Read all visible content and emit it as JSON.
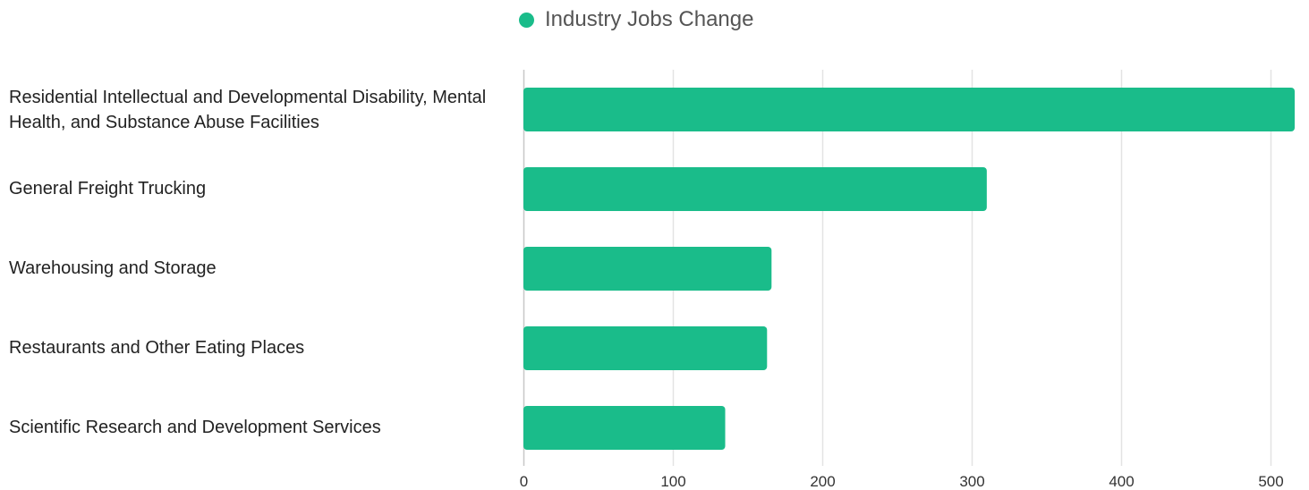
{
  "chart_data": {
    "type": "bar",
    "orientation": "horizontal",
    "categories": [
      "Residential Intellectual and Developmental Disability, Mental Health, and Substance Abuse Facilities",
      "General Freight Trucking",
      "Warehousing and Storage",
      "Restaurants and Other Eating Places",
      "Scientific Research and Development Services"
    ],
    "series": [
      {
        "name": "Industry Jobs Change",
        "values": [
          516,
          310,
          166,
          163,
          135
        ],
        "color": "#1abc8a"
      }
    ],
    "x_ticks": [
      "0",
      "100",
      "200",
      "300",
      "400",
      "500"
    ],
    "xlim": [
      0,
      516
    ],
    "grid": "vertical",
    "legend_position": "top-center"
  }
}
